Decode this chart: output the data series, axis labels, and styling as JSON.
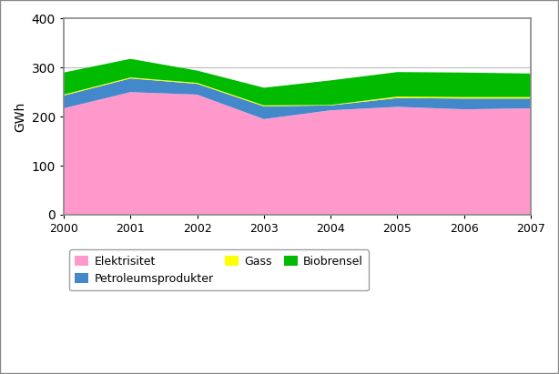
{
  "years": [
    2000,
    2001,
    2002,
    2003,
    2004,
    2005,
    2006,
    2007
  ],
  "elektrisitet": [
    217,
    250,
    245,
    195,
    213,
    220,
    215,
    217
  ],
  "petroleumsprodukter": [
    26,
    28,
    22,
    26,
    10,
    18,
    22,
    20
  ],
  "gass": [
    2,
    2,
    2,
    2,
    1,
    3,
    3,
    3
  ],
  "biobrensel": [
    45,
    38,
    25,
    36,
    50,
    50,
    50,
    48
  ],
  "elektrisitet_color": "#FF99CC",
  "petroleumsprodukter_color": "#4488CC",
  "gass_color": "#FFFF00",
  "biobrensel_color": "#00BB00",
  "ylabel": "GWh",
  "ylim": [
    0,
    400
  ],
  "yticks": [
    0,
    100,
    200,
    300,
    400
  ],
  "xlim": [
    2000,
    2007
  ],
  "background_color": "#FFFFFF",
  "plot_bg_color": "#FFFFFF",
  "grid_color": "#BBBBBB",
  "legend_labels": [
    "Elektrisitet",
    "Petroleumsprodukter",
    "Gass",
    "Biobrensel"
  ],
  "border_color": "#888888",
  "figure_border_color": "#888888"
}
